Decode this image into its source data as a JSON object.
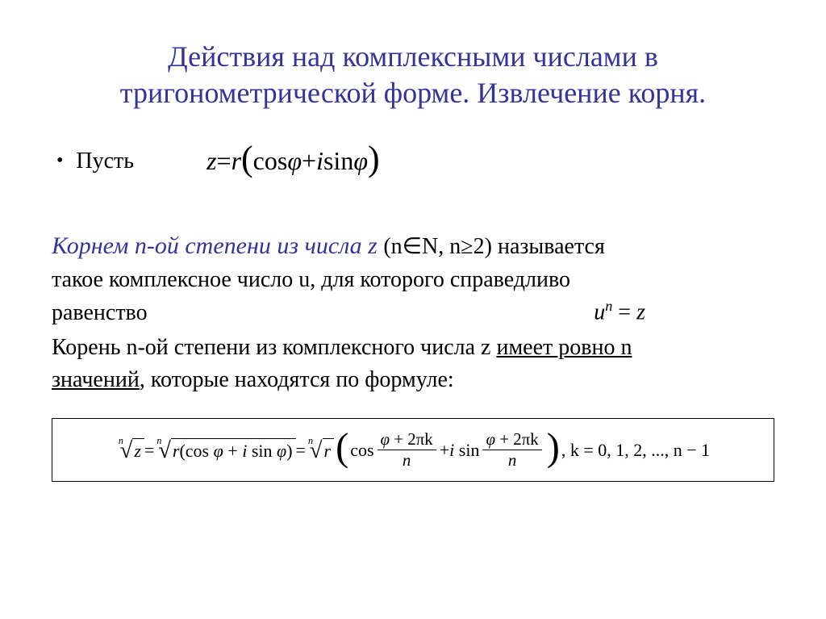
{
  "title_line1": "Действия над комплексными числами в",
  "title_line2": "тригонометрической форме. Извлечение корня.",
  "bullet_label": "Пусть",
  "eq_main_lhs": "z",
  "eq_main_eq": " = ",
  "eq_main_r": "r",
  "eq_main_cos": "cos ",
  "eq_main_phi": "φ",
  "eq_main_plus": " + ",
  "eq_main_i": "i",
  "eq_main_sin": " sin ",
  "def_colored": "Корнем n-ой степени из числа z ",
  "def_rest": "(n∈N, n≥2) называется",
  "def_line2a": "такое комплексное число ",
  "def_u": "u",
  "def_line2b": ", для которого справедливо",
  "def_line3": "равенство",
  "eq_un_u": "u",
  "eq_un_n": "n",
  "eq_un_eq": " = ",
  "eq_un_z": "z",
  "stmt_l1a": "Корень n-ой степени из комплексного числа z ",
  "stmt_l1u": "имеет ровно n",
  "stmt_l2u": "значений",
  "stmt_l2r": ", которые находятся по формуле:",
  "box_idx_n": "n",
  "box_z": "z",
  "box_eq": " = ",
  "box_r": "r",
  "box_cos": "cos ",
  "box_phi": "φ",
  "box_plus": " + ",
  "box_i": "i",
  "box_sin": "sin ",
  "box_2pik": " + 2πk",
  "box_n_den": "n",
  "box_tail": ", k = 0, 1, 2, ..., n − 1",
  "colors": {
    "title": "#333399",
    "text": "#000000",
    "background": "#ffffff"
  }
}
